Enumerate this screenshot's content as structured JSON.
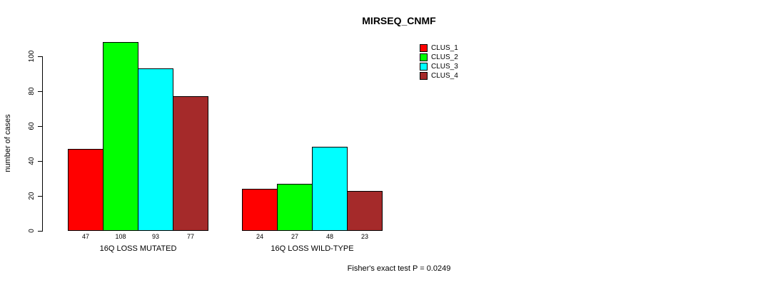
{
  "chart_data": {
    "type": "bar",
    "title": "MIRSEQ_CNMF",
    "ylabel": "number of cases",
    "xlabel": "",
    "ylim": [
      0,
      108
    ],
    "yticks": [
      0,
      20,
      40,
      60,
      80,
      100
    ],
    "grid": false,
    "legend_position": "top-right",
    "categories": [
      "16Q LOSS MUTATED",
      "16Q LOSS WILD-TYPE"
    ],
    "series": [
      {
        "name": "CLUS_1",
        "color": "#FF0000",
        "values": [
          47,
          24
        ]
      },
      {
        "name": "CLUS_2",
        "color": "#00FF00",
        "values": [
          108,
          27
        ]
      },
      {
        "name": "CLUS_3",
        "color": "#00FFFF",
        "values": [
          93,
          48
        ]
      },
      {
        "name": "CLUS_4",
        "color": "#A52A2A",
        "values": [
          77,
          23
        ]
      }
    ],
    "bar_value_labels": [
      [
        47,
        108,
        93,
        77
      ],
      [
        24,
        27,
        48,
        23
      ]
    ],
    "annotation": "Fisher's exact test P = 0.0249"
  },
  "colors": {
    "background": "#FFFFFF",
    "axis": "#000000",
    "bar_border": "#000000",
    "text": "#000000"
  }
}
